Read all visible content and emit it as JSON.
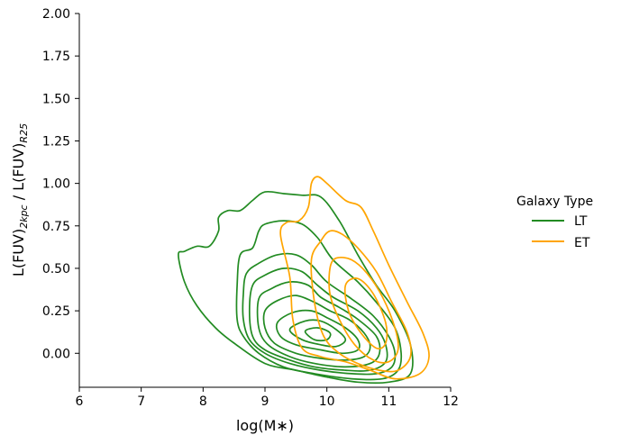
{
  "chart_data": {
    "type": "contour",
    "xlabel": "log(M∗)",
    "ylabel_parts": [
      "L(FUV)",
      "2kpc",
      " / L(FUV)",
      "R25"
    ],
    "xlim": [
      6,
      12
    ],
    "ylim": [
      -0.2,
      2.0
    ],
    "xticks": [
      6,
      7,
      8,
      9,
      10,
      11,
      12
    ],
    "yticks": [
      0.0,
      0.25,
      0.5,
      0.75,
      1.0,
      1.25,
      1.5,
      1.75,
      2.0
    ],
    "ytick_labels": [
      "0.00",
      "0.25",
      "0.50",
      "0.75",
      "1.00",
      "1.25",
      "1.50",
      "1.75",
      "2.00"
    ],
    "grid": false,
    "legend": {
      "title": "Galaxy Type",
      "placement": "right"
    },
    "series": [
      {
        "name": "LT",
        "color": "#228B22",
        "contours": [
          [
            [
              7.6,
              0.58
            ],
            [
              7.7,
              0.6
            ],
            [
              7.9,
              0.63
            ],
            [
              8.1,
              0.63
            ],
            [
              8.25,
              0.72
            ],
            [
              8.25,
              0.8
            ],
            [
              8.4,
              0.84
            ],
            [
              8.6,
              0.84
            ],
            [
              8.8,
              0.9
            ],
            [
              9.0,
              0.95
            ],
            [
              9.3,
              0.94
            ],
            [
              9.6,
              0.93
            ],
            [
              9.9,
              0.92
            ],
            [
              10.2,
              0.78
            ],
            [
              10.5,
              0.58
            ],
            [
              10.8,
              0.4
            ],
            [
              11.1,
              0.25
            ],
            [
              11.35,
              0.05
            ],
            [
              11.35,
              -0.12
            ],
            [
              11.0,
              -0.17
            ],
            [
              10.5,
              -0.17
            ],
            [
              10.0,
              -0.14
            ],
            [
              9.5,
              -0.1
            ],
            [
              9.0,
              -0.06
            ],
            [
              8.5,
              0.06
            ],
            [
              8.2,
              0.15
            ],
            [
              7.9,
              0.28
            ],
            [
              7.7,
              0.42
            ],
            [
              7.6,
              0.58
            ]
          ],
          [
            [
              8.6,
              0.58
            ],
            [
              8.8,
              0.62
            ],
            [
              8.9,
              0.72
            ],
            [
              9.0,
              0.76
            ],
            [
              9.3,
              0.78
            ],
            [
              9.6,
              0.76
            ],
            [
              9.85,
              0.68
            ],
            [
              10.1,
              0.55
            ],
            [
              10.5,
              0.42
            ],
            [
              10.8,
              0.3
            ],
            [
              11.1,
              0.15
            ],
            [
              11.2,
              0.0
            ],
            [
              11.15,
              -0.1
            ],
            [
              10.9,
              -0.15
            ],
            [
              10.4,
              -0.15
            ],
            [
              9.8,
              -0.12
            ],
            [
              9.3,
              -0.08
            ],
            [
              8.9,
              0.0
            ],
            [
              8.65,
              0.1
            ],
            [
              8.55,
              0.2
            ],
            [
              8.55,
              0.4
            ],
            [
              8.6,
              0.58
            ]
          ],
          [
            [
              8.7,
              0.47
            ],
            [
              8.9,
              0.53
            ],
            [
              9.2,
              0.58
            ],
            [
              9.5,
              0.58
            ],
            [
              9.75,
              0.52
            ],
            [
              10.0,
              0.42
            ],
            [
              10.4,
              0.32
            ],
            [
              10.75,
              0.22
            ],
            [
              11.0,
              0.1
            ],
            [
              11.1,
              0.0
            ],
            [
              11.05,
              -0.08
            ],
            [
              10.8,
              -0.12
            ],
            [
              10.4,
              -0.12
            ],
            [
              9.9,
              -0.1
            ],
            [
              9.4,
              -0.06
            ],
            [
              9.0,
              0.0
            ],
            [
              8.75,
              0.08
            ],
            [
              8.65,
              0.2
            ],
            [
              8.65,
              0.35
            ],
            [
              8.7,
              0.47
            ]
          ],
          [
            [
              8.8,
              0.4
            ],
            [
              9.0,
              0.46
            ],
            [
              9.3,
              0.5
            ],
            [
              9.6,
              0.48
            ],
            [
              9.85,
              0.4
            ],
            [
              10.1,
              0.33
            ],
            [
              10.5,
              0.25
            ],
            [
              10.8,
              0.15
            ],
            [
              10.95,
              0.05
            ],
            [
              10.95,
              -0.05
            ],
            [
              10.7,
              -0.1
            ],
            [
              10.3,
              -0.1
            ],
            [
              9.8,
              -0.08
            ],
            [
              9.4,
              -0.04
            ],
            [
              9.0,
              0.02
            ],
            [
              8.8,
              0.1
            ],
            [
              8.75,
              0.25
            ],
            [
              8.8,
              0.4
            ]
          ],
          [
            [
              8.9,
              0.32
            ],
            [
              9.1,
              0.38
            ],
            [
              9.4,
              0.42
            ],
            [
              9.7,
              0.4
            ],
            [
              9.9,
              0.33
            ],
            [
              10.2,
              0.27
            ],
            [
              10.5,
              0.2
            ],
            [
              10.8,
              0.1
            ],
            [
              10.85,
              0.0
            ],
            [
              10.7,
              -0.06
            ],
            [
              10.3,
              -0.08
            ],
            [
              9.8,
              -0.06
            ],
            [
              9.4,
              -0.02
            ],
            [
              9.05,
              0.05
            ],
            [
              8.9,
              0.15
            ],
            [
              8.9,
              0.32
            ]
          ],
          [
            [
              9.0,
              0.25
            ],
            [
              9.2,
              0.31
            ],
            [
              9.5,
              0.34
            ],
            [
              9.8,
              0.3
            ],
            [
              10.05,
              0.25
            ],
            [
              10.35,
              0.2
            ],
            [
              10.6,
              0.12
            ],
            [
              10.7,
              0.04
            ],
            [
              10.6,
              -0.02
            ],
            [
              10.3,
              -0.04
            ],
            [
              9.9,
              -0.03
            ],
            [
              9.5,
              0.0
            ],
            [
              9.15,
              0.06
            ],
            [
              9.0,
              0.15
            ],
            [
              9.0,
              0.25
            ]
          ],
          [
            [
              9.2,
              0.18
            ],
            [
              9.45,
              0.24
            ],
            [
              9.75,
              0.25
            ],
            [
              10.0,
              0.21
            ],
            [
              10.3,
              0.15
            ],
            [
              10.5,
              0.08
            ],
            [
              10.5,
              0.02
            ],
            [
              10.25,
              0.0
            ],
            [
              9.9,
              0.02
            ],
            [
              9.5,
              0.05
            ],
            [
              9.25,
              0.1
            ],
            [
              9.2,
              0.18
            ]
          ],
          [
            [
              9.4,
              0.14
            ],
            [
              9.65,
              0.19
            ],
            [
              9.9,
              0.19
            ],
            [
              10.15,
              0.14
            ],
            [
              10.3,
              0.08
            ],
            [
              10.15,
              0.04
            ],
            [
              9.9,
              0.05
            ],
            [
              9.6,
              0.08
            ],
            [
              9.4,
              0.14
            ]
          ],
          [
            [
              9.65,
              0.13
            ],
            [
              9.85,
              0.15
            ],
            [
              10.05,
              0.12
            ],
            [
              10.0,
              0.08
            ],
            [
              9.8,
              0.08
            ],
            [
              9.65,
              0.13
            ]
          ]
        ]
      },
      {
        "name": "ET",
        "color": "#FFA500",
        "contours": [
          [
            [
              9.25,
              0.7
            ],
            [
              9.35,
              0.77
            ],
            [
              9.55,
              0.78
            ],
            [
              9.7,
              0.86
            ],
            [
              9.75,
              1.0
            ],
            [
              9.85,
              1.04
            ],
            [
              10.0,
              1.0
            ],
            [
              10.3,
              0.9
            ],
            [
              10.55,
              0.86
            ],
            [
              10.75,
              0.72
            ],
            [
              11.0,
              0.52
            ],
            [
              11.3,
              0.3
            ],
            [
              11.55,
              0.12
            ],
            [
              11.65,
              -0.02
            ],
            [
              11.5,
              -0.12
            ],
            [
              11.1,
              -0.15
            ],
            [
              10.7,
              -0.1
            ],
            [
              10.3,
              -0.05
            ],
            [
              9.9,
              -0.02
            ],
            [
              9.6,
              0.03
            ],
            [
              9.45,
              0.2
            ],
            [
              9.4,
              0.45
            ],
            [
              9.25,
              0.7
            ]
          ],
          [
            [
              9.75,
              0.55
            ],
            [
              9.9,
              0.66
            ],
            [
              10.05,
              0.72
            ],
            [
              10.25,
              0.7
            ],
            [
              10.5,
              0.62
            ],
            [
              10.8,
              0.48
            ],
            [
              11.05,
              0.3
            ],
            [
              11.3,
              0.12
            ],
            [
              11.35,
              -0.02
            ],
            [
              11.15,
              -0.1
            ],
            [
              10.85,
              -0.1
            ],
            [
              10.5,
              -0.06
            ],
            [
              10.2,
              0.0
            ],
            [
              9.95,
              0.1
            ],
            [
              9.8,
              0.3
            ],
            [
              9.75,
              0.55
            ]
          ],
          [
            [
              10.05,
              0.5
            ],
            [
              10.15,
              0.56
            ],
            [
              10.4,
              0.55
            ],
            [
              10.65,
              0.47
            ],
            [
              10.9,
              0.33
            ],
            [
              11.1,
              0.15
            ],
            [
              11.15,
              0.02
            ],
            [
              11.0,
              -0.05
            ],
            [
              10.75,
              -0.04
            ],
            [
              10.45,
              0.05
            ],
            [
              10.2,
              0.2
            ],
            [
              10.05,
              0.35
            ],
            [
              10.05,
              0.5
            ]
          ],
          [
            [
              10.3,
              0.4
            ],
            [
              10.5,
              0.44
            ],
            [
              10.75,
              0.35
            ],
            [
              10.95,
              0.18
            ],
            [
              10.95,
              0.06
            ],
            [
              10.8,
              0.03
            ],
            [
              10.55,
              0.12
            ],
            [
              10.35,
              0.25
            ],
            [
              10.3,
              0.4
            ]
          ]
        ]
      }
    ]
  }
}
